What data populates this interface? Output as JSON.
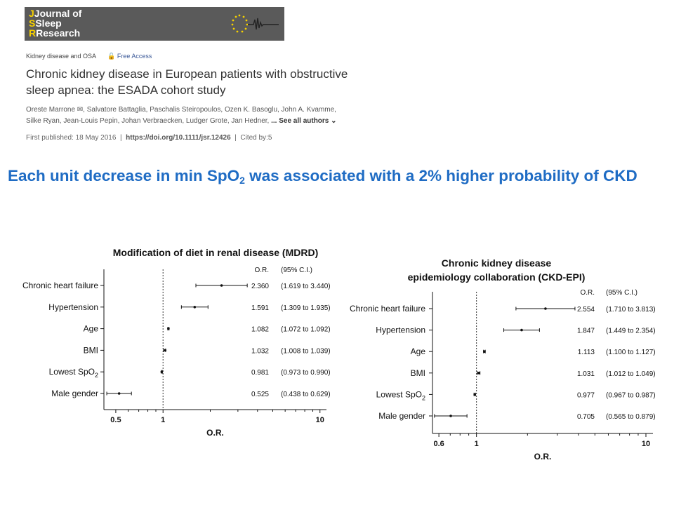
{
  "journal": {
    "line1": "Journal of",
    "line2": "Sleep",
    "line3": "Research",
    "brand_color": "#f5d000"
  },
  "paper": {
    "section": "Kidney disease and OSA",
    "access": "Free Access",
    "title": "Chronic kidney disease in European patients with obstructive sleep apnea: the ESADA cohort study",
    "authors_line1": "Oreste Marrone ✉, Salvatore Battaglia, Paschalis Steiropoulos, Ozen K. Basoglu, John A. Kvamme,",
    "authors_line2": "Silke Ryan, Jean-Louis Pepin, Johan Verbraecken, Ludger Grote, Jan Hedner,",
    "see_all": "... See all authors ⌄",
    "published": "First published: 18 May 2016",
    "doi": "https://doi.org/10.1111/jsr.12426",
    "cited": "Cited by:5"
  },
  "statement": {
    "part1": "Each unit decrease in min SpO",
    "sub": "2",
    "part2": " was associated with a 2% higher probability of CKD",
    "color": "#1f6cc4"
  },
  "chart_data": [
    {
      "type": "forest",
      "title": "Modification of diet in renal disease (MDRD)",
      "xlabel": "O.R.",
      "x_scale": "log",
      "xlim": [
        0.42,
        11
      ],
      "xticks": [
        "0.5",
        "1",
        "10"
      ],
      "reference_line": 1,
      "col_headers": [
        "O.R.",
        "(95% C.I.)"
      ],
      "rows": [
        {
          "label": "Chronic heart failure",
          "or": 2.36,
          "lo": 1.619,
          "hi": 3.44,
          "or_text": "2.360",
          "ci_text": "(1.619 to 3.440)"
        },
        {
          "label": "Hypertension",
          "or": 1.591,
          "lo": 1.309,
          "hi": 1.935,
          "or_text": "1.591",
          "ci_text": "(1.309 to 1.935)"
        },
        {
          "label": "Age",
          "or": 1.082,
          "lo": 1.072,
          "hi": 1.092,
          "or_text": "1.082",
          "ci_text": "(1.072 to 1.092)"
        },
        {
          "label": "BMI",
          "or": 1.032,
          "lo": 1.008,
          "hi": 1.039,
          "or_text": "1.032",
          "ci_text": "(1.008 to 1.039)"
        },
        {
          "label": "Lowest SpO",
          "sub": "2",
          "or": 0.981,
          "lo": 0.973,
          "hi": 0.99,
          "or_text": "0.981",
          "ci_text": "(0.973 to 0.990)"
        },
        {
          "label": "Male gender",
          "or": 0.525,
          "lo": 0.438,
          "hi": 0.629,
          "or_text": "0.525",
          "ci_text": "(0.438 to 0.629)"
        }
      ]
    },
    {
      "type": "forest",
      "title_lines": [
        "Chronic kidney disease",
        "epidemiology collaboration (CKD-EPI)"
      ],
      "xlabel": "O.R.",
      "x_scale": "log",
      "xlim": [
        0.55,
        11
      ],
      "xticks": [
        "0.6",
        "1",
        "10"
      ],
      "reference_line": 1,
      "col_headers": [
        "O.R.",
        "(95% C.I.)"
      ],
      "rows": [
        {
          "label": "Chronic heart failure",
          "or": 2.554,
          "lo": 1.71,
          "hi": 3.813,
          "or_text": "2.554",
          "ci_text": "(1.710 to 3.813)"
        },
        {
          "label": "Hypertension",
          "or": 1.847,
          "lo": 1.449,
          "hi": 2.354,
          "or_text": "1.847",
          "ci_text": "(1.449 to 2.354)"
        },
        {
          "label": "Age",
          "or": 1.113,
          "lo": 1.1,
          "hi": 1.127,
          "or_text": "1.113",
          "ci_text": "(1.100 to 1.127)"
        },
        {
          "label": "BMI",
          "or": 1.031,
          "lo": 1.012,
          "hi": 1.049,
          "or_text": "1.031",
          "ci_text": "(1.012 to 1.049)"
        },
        {
          "label": "Lowest SpO",
          "sub": "2",
          "or": 0.977,
          "lo": 0.967,
          "hi": 0.987,
          "or_text": "0.977",
          "ci_text": "(0.967 to 0.987)"
        },
        {
          "label": "Male gender",
          "or": 0.705,
          "lo": 0.565,
          "hi": 0.879,
          "or_text": "0.705",
          "ci_text": "(0.565 to 0.879)"
        }
      ]
    }
  ]
}
